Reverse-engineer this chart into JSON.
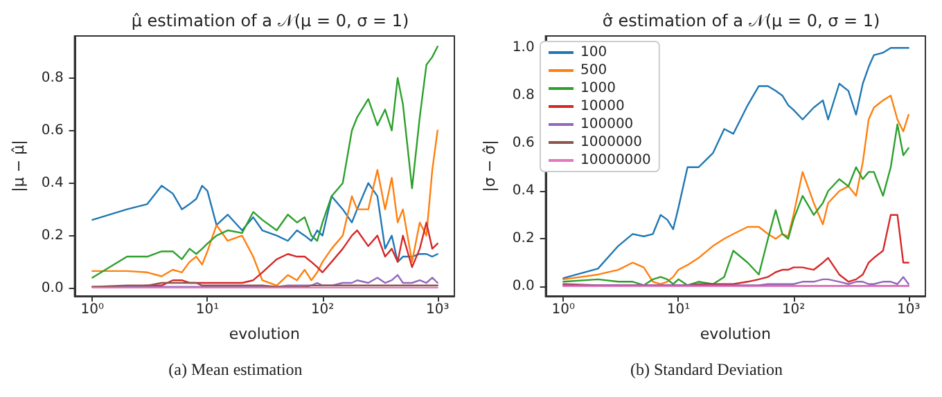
{
  "chart_data": [
    {
      "type": "line",
      "title": "μ̂ estimation of a 𝒩(μ = 0, σ = 1)",
      "xlabel": "evolution",
      "ylabel": "|μ − μ̂|",
      "annotations": [
        "(a) Mean estimation"
      ],
      "log": "x",
      "grid": false,
      "legend": false,
      "marker": "none",
      "line_style": "solid",
      "xlim": [
        0.7,
        1400
      ],
      "xticks": [
        {
          "value": 1,
          "label": "10⁰"
        },
        {
          "value": 10,
          "label": "10¹"
        },
        {
          "value": 100,
          "label": "10²"
        },
        {
          "value": 1000,
          "label": "10³"
        }
      ],
      "ylim": [
        -0.03,
        0.96
      ],
      "yticks": [
        {
          "value": 0,
          "label": "0.0"
        },
        {
          "value": 0.2,
          "label": "0.2"
        },
        {
          "value": 0.4,
          "label": "0.4"
        },
        {
          "value": 0.6,
          "label": "0.6"
        },
        {
          "value": 0.8,
          "label": "0.8"
        }
      ],
      "x": [
        1,
        2,
        3,
        4,
        5,
        6,
        7,
        8,
        9,
        10,
        12,
        15,
        20,
        25,
        30,
        40,
        50,
        60,
        70,
        80,
        90,
        100,
        120,
        150,
        180,
        200,
        250,
        300,
        350,
        400,
        450,
        500,
        600,
        700,
        800,
        900,
        1000
      ],
      "series": [
        {
          "color": "#1f77b4",
          "values": [
            0.26,
            0.3,
            0.32,
            0.39,
            0.36,
            0.3,
            0.32,
            0.34,
            0.39,
            0.37,
            0.24,
            0.28,
            0.22,
            0.27,
            0.22,
            0.2,
            0.18,
            0.22,
            0.2,
            0.18,
            0.22,
            0.2,
            0.35,
            0.3,
            0.25,
            0.3,
            0.4,
            0.35,
            0.15,
            0.2,
            0.1,
            0.12,
            0.12,
            0.13,
            0.13,
            0.12,
            0.13
          ]
        },
        {
          "color": "#ff7f0e",
          "values": [
            0.065,
            0.065,
            0.06,
            0.045,
            0.07,
            0.06,
            0.1,
            0.12,
            0.09,
            0.14,
            0.24,
            0.18,
            0.2,
            0.12,
            0.03,
            0.01,
            0.05,
            0.03,
            0.07,
            0.03,
            0.06,
            0.1,
            0.15,
            0.2,
            0.35,
            0.3,
            0.3,
            0.45,
            0.3,
            0.42,
            0.25,
            0.3,
            0.1,
            0.25,
            0.2,
            0.45,
            0.6
          ]
        },
        {
          "color": "#2ca02c",
          "values": [
            0.04,
            0.12,
            0.12,
            0.14,
            0.14,
            0.11,
            0.15,
            0.13,
            0.15,
            0.17,
            0.2,
            0.22,
            0.21,
            0.29,
            0.26,
            0.22,
            0.28,
            0.25,
            0.27,
            0.2,
            0.18,
            0.25,
            0.35,
            0.4,
            0.6,
            0.65,
            0.72,
            0.62,
            0.68,
            0.6,
            0.8,
            0.7,
            0.38,
            0.65,
            0.85,
            0.88,
            0.92
          ]
        },
        {
          "color": "#d62728",
          "values": [
            0.005,
            0.005,
            0.01,
            0.01,
            0.03,
            0.03,
            0.02,
            0.02,
            0.02,
            0.02,
            0.02,
            0.02,
            0.02,
            0.03,
            0.06,
            0.11,
            0.13,
            0.12,
            0.12,
            0.1,
            0.08,
            0.06,
            0.1,
            0.15,
            0.2,
            0.22,
            0.16,
            0.2,
            0.12,
            0.15,
            0.1,
            0.2,
            0.08,
            0.15,
            0.25,
            0.15,
            0.17
          ]
        },
        {
          "color": "#9467bd",
          "values": [
            0.005,
            0.005,
            0.005,
            0.005,
            0.005,
            0.005,
            0.005,
            0.005,
            0.005,
            0.005,
            0.005,
            0.005,
            0.005,
            0.005,
            0.005,
            0.005,
            0.01,
            0.01,
            0.01,
            0.01,
            0.02,
            0.01,
            0.01,
            0.02,
            0.02,
            0.03,
            0.02,
            0.04,
            0.02,
            0.03,
            0.05,
            0.02,
            0.02,
            0.03,
            0.02,
            0.04,
            0.02
          ]
        },
        {
          "color": "#8c564b",
          "values": [
            0.005,
            0.01,
            0.01,
            0.02,
            0.02,
            0.02,
            0.02,
            0.02,
            0.01,
            0.01,
            0.01,
            0.01,
            0.01,
            0.01,
            0.01,
            0.005,
            0.005,
            0.005,
            0.005,
            0.01,
            0.01,
            0.01,
            0.01,
            0.01,
            0.01,
            0.01,
            0.01,
            0.01,
            0.01,
            0.01,
            0.01,
            0.01,
            0.01,
            0.01,
            0.01,
            0.01,
            0.01
          ]
        },
        {
          "color": "#e377c2",
          "values": [
            0.002,
            0.002,
            0.002,
            0.002,
            0.002,
            0.002,
            0.002,
            0.002,
            0.002,
            0.002,
            0.002,
            0.002,
            0.002,
            0.002,
            0.002,
            0.002,
            0.002,
            0.002,
            0.002,
            0.002,
            0.002,
            0.002,
            0.002,
            0.002,
            0.002,
            0.002,
            0.002,
            0.002,
            0.002,
            0.002,
            0.002,
            0.002,
            0.002,
            0.002,
            0.002,
            0.002,
            0.002
          ]
        }
      ]
    },
    {
      "type": "line",
      "title": "σ̂ estimation of a 𝒩(μ = 0, σ = 1)",
      "xlabel": "evolution",
      "ylabel": "|σ − σ̂|",
      "annotations": [
        "(b) Standard Deviation"
      ],
      "log": "x",
      "grid": false,
      "legend": "top left",
      "marker": "none",
      "line_style": "solid",
      "xlim": [
        0.7,
        1400
      ],
      "xticks": [
        {
          "value": 1,
          "label": "10⁰"
        },
        {
          "value": 10,
          "label": "10¹"
        },
        {
          "value": 100,
          "label": "10²"
        },
        {
          "value": 1000,
          "label": "10³"
        }
      ],
      "ylim": [
        -0.04,
        1.05
      ],
      "yticks": [
        {
          "value": 0,
          "label": "0.0"
        },
        {
          "value": 0.2,
          "label": "0.2"
        },
        {
          "value": 0.4,
          "label": "0.4"
        },
        {
          "value": 0.6,
          "label": "0.6"
        },
        {
          "value": 0.8,
          "label": "0.8"
        },
        {
          "value": 1,
          "label": "1.0"
        }
      ],
      "x": [
        1,
        2,
        3,
        4,
        5,
        6,
        7,
        8,
        9,
        10,
        12,
        15,
        20,
        25,
        30,
        40,
        50,
        60,
        70,
        80,
        90,
        100,
        120,
        150,
        180,
        200,
        250,
        300,
        350,
        400,
        450,
        500,
        600,
        700,
        800,
        900,
        1000
      ],
      "series": [
        {
          "name": "100",
          "color": "#1f77b4",
          "values": [
            0.035,
            0.075,
            0.17,
            0.22,
            0.21,
            0.22,
            0.3,
            0.28,
            0.24,
            0.33,
            0.5,
            0.5,
            0.56,
            0.66,
            0.64,
            0.76,
            0.84,
            0.84,
            0.82,
            0.8,
            0.76,
            0.74,
            0.7,
            0.75,
            0.78,
            0.7,
            0.85,
            0.82,
            0.72,
            0.85,
            0.92,
            0.97,
            0.98,
            1.0,
            1.0,
            1.0,
            1.0
          ]
        },
        {
          "name": "500",
          "color": "#ff7f0e",
          "values": [
            0.03,
            0.05,
            0.07,
            0.1,
            0.08,
            0.02,
            0.01,
            0.02,
            0.04,
            0.07,
            0.09,
            0.12,
            0.17,
            0.2,
            0.22,
            0.25,
            0.25,
            0.22,
            0.2,
            0.22,
            0.21,
            0.3,
            0.48,
            0.35,
            0.26,
            0.35,
            0.4,
            0.42,
            0.38,
            0.52,
            0.7,
            0.75,
            0.78,
            0.8,
            0.7,
            0.65,
            0.72
          ]
        },
        {
          "name": "1000",
          "color": "#2ca02c",
          "values": [
            0.02,
            0.03,
            0.02,
            0.02,
            0.005,
            0.03,
            0.04,
            0.03,
            0.01,
            0.03,
            0.005,
            0.02,
            0.01,
            0.04,
            0.15,
            0.1,
            0.05,
            0.2,
            0.32,
            0.22,
            0.2,
            0.28,
            0.38,
            0.3,
            0.35,
            0.4,
            0.45,
            0.42,
            0.5,
            0.45,
            0.48,
            0.48,
            0.38,
            0.5,
            0.68,
            0.55,
            0.58
          ]
        },
        {
          "name": "10000",
          "color": "#d62728",
          "values": [
            0.01,
            0.005,
            0.005,
            0.005,
            0.005,
            0.005,
            0.005,
            0.005,
            0.005,
            0.005,
            0.005,
            0.01,
            0.01,
            0.01,
            0.01,
            0.02,
            0.03,
            0.04,
            0.06,
            0.07,
            0.07,
            0.08,
            0.08,
            0.07,
            0.1,
            0.12,
            0.05,
            0.02,
            0.03,
            0.05,
            0.1,
            0.12,
            0.15,
            0.3,
            0.3,
            0.1,
            0.1
          ]
        },
        {
          "name": "100000",
          "color": "#9467bd",
          "values": [
            0.005,
            0.005,
            0.005,
            0.005,
            0.005,
            0.005,
            0.005,
            0.005,
            0.005,
            0.005,
            0.005,
            0.005,
            0.005,
            0.005,
            0.005,
            0.005,
            0.005,
            0.01,
            0.01,
            0.01,
            0.01,
            0.01,
            0.02,
            0.02,
            0.03,
            0.03,
            0.02,
            0.01,
            0.02,
            0.02,
            0.01,
            0.01,
            0.02,
            0.02,
            0.01,
            0.04,
            0.01
          ]
        },
        {
          "name": "1000000",
          "color": "#8c564b",
          "values": [
            0.002,
            0.002,
            0.002,
            0.002,
            0.002,
            0.002,
            0.002,
            0.002,
            0.002,
            0.002,
            0.002,
            0.002,
            0.002,
            0.002,
            0.002,
            0.002,
            0.002,
            0.002,
            0.002,
            0.002,
            0.002,
            0.002,
            0.002,
            0.002,
            0.002,
            0.002,
            0.002,
            0.002,
            0.002,
            0.002,
            0.002,
            0.002,
            0.002,
            0.002,
            0.002,
            0.002,
            0.002
          ]
        },
        {
          "name": "10000000",
          "color": "#e377c2",
          "values": [
            0.001,
            0.001,
            0.001,
            0.001,
            0.001,
            0.001,
            0.001,
            0.001,
            0.001,
            0.001,
            0.001,
            0.001,
            0.001,
            0.001,
            0.001,
            0.001,
            0.001,
            0.001,
            0.001,
            0.001,
            0.001,
            0.001,
            0.001,
            0.001,
            0.001,
            0.001,
            0.001,
            0.001,
            0.001,
            0.001,
            0.001,
            0.001,
            0.001,
            0.001,
            0.001,
            0.001,
            0.001
          ]
        }
      ]
    }
  ]
}
